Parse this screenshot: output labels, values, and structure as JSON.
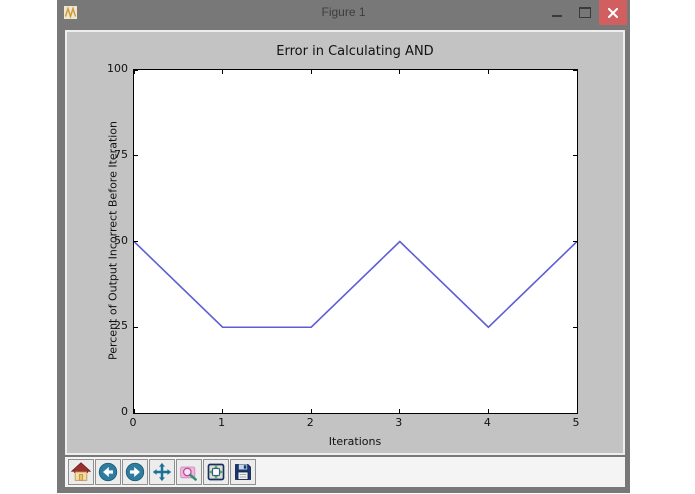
{
  "window": {
    "title": "Figure 1"
  },
  "chart_data": {
    "type": "line",
    "title": "Error in Calculating AND",
    "xlabel": "Iterations",
    "ylabel": "Percent of Output Incorrect Before Iteration",
    "x": [
      0,
      1,
      2,
      3,
      4,
      5
    ],
    "y": [
      50,
      25,
      25,
      50,
      25,
      50
    ],
    "xlim": [
      0,
      5
    ],
    "ylim": [
      0,
      100
    ],
    "xticks": [
      0,
      1,
      2,
      3,
      4,
      5
    ],
    "yticks": [
      0,
      25,
      50,
      75,
      100
    ],
    "grid": false,
    "legend_position": null,
    "line_color": "#5d5dd5",
    "plot_bg": "#ffffff",
    "figure_bg": "#c3c3c3"
  },
  "toolbar": {
    "buttons": [
      {
        "icon": "home-icon",
        "name": "home"
      },
      {
        "icon": "back-icon",
        "name": "back"
      },
      {
        "icon": "forward-icon",
        "name": "forward"
      },
      {
        "icon": "pan-icon",
        "name": "pan"
      },
      {
        "icon": "zoom-icon",
        "name": "zoom"
      },
      {
        "icon": "subplots-icon",
        "name": "subplots"
      },
      {
        "icon": "save-icon",
        "name": "save"
      }
    ]
  }
}
